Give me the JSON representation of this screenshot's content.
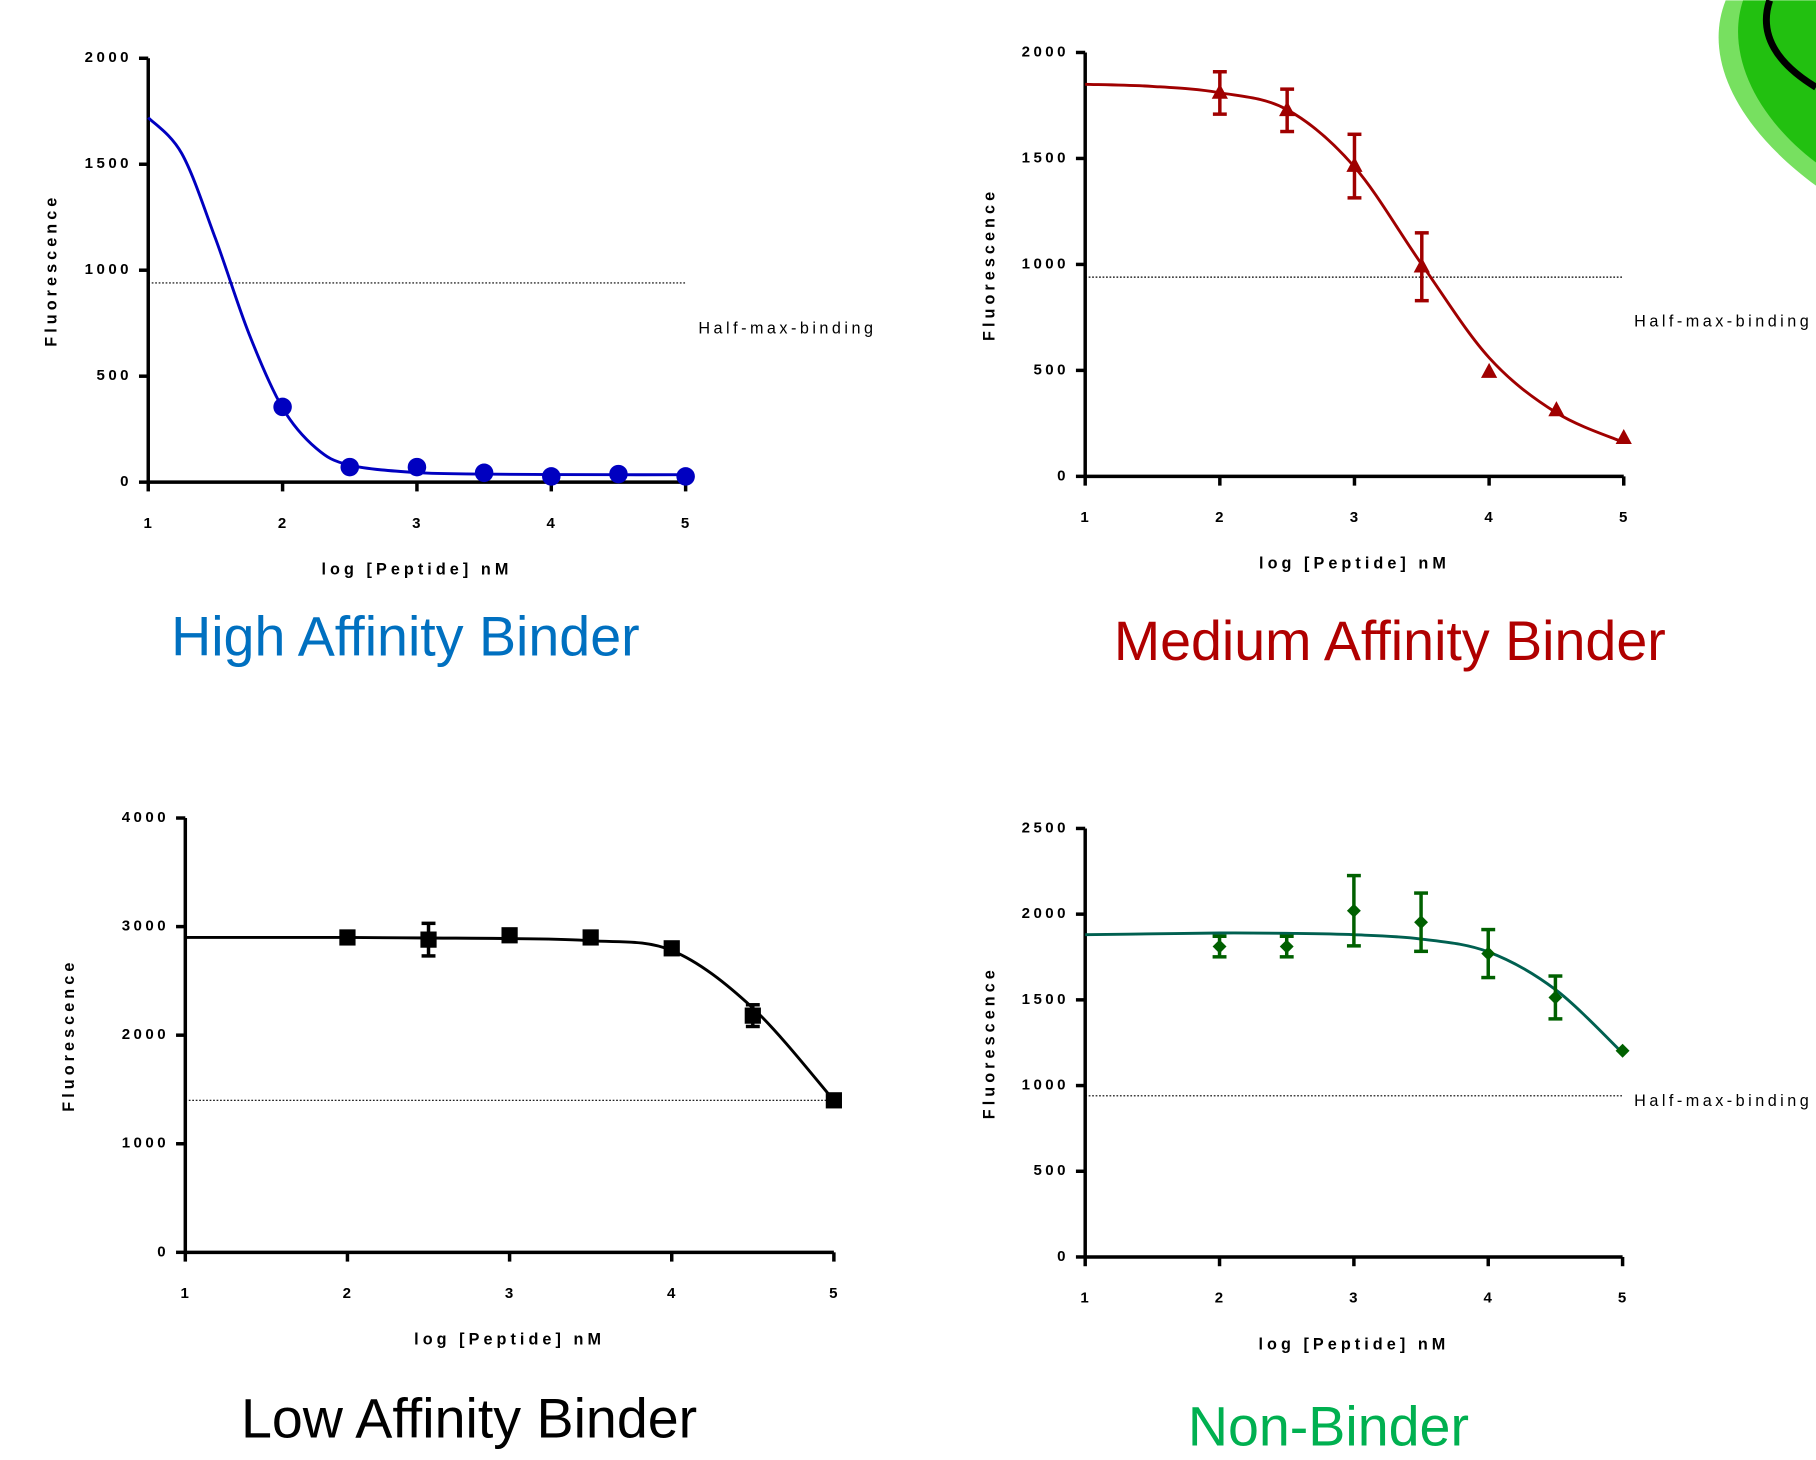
{
  "chart_data": [
    {
      "type": "scatter",
      "title": "High Affinity Binder",
      "title_color": "#0070c0",
      "xlabel": "log [Peptide] nM",
      "ylabel": "Fluorescence",
      "xlim": [
        1,
        5
      ],
      "xticks": [
        1,
        2,
        3,
        4,
        5
      ],
      "ylim": [
        0,
        2000
      ],
      "yticks": [
        0,
        500,
        1000,
        1500,
        2000
      ],
      "series": [
        {
          "color": "#0000c0",
          "marker": "circle",
          "x": [
            2,
            2.5,
            3,
            3.5,
            4,
            4.5,
            5
          ],
          "values": [
            355,
            71,
            71,
            44,
            27,
            38,
            27
          ],
          "errors": [
            null,
            null,
            null,
            null,
            null,
            null,
            null
          ]
        }
      ],
      "fit": {
        "color": "#0000c0",
        "x": [
          1,
          1.25,
          1.5,
          1.75,
          2,
          2.25,
          2.5,
          3,
          3.5,
          4,
          4.5,
          5
        ],
        "values": [
          1720,
          1550,
          1150,
          700,
          350,
          160,
          80,
          45,
          38,
          36,
          35,
          35
        ]
      },
      "hline": {
        "value": 940,
        "label": "Half-max-binding"
      }
    },
    {
      "type": "scatter",
      "title": "Medium Affinity Binder",
      "title_color": "#b00000",
      "xlabel": "log [Peptide] nM",
      "ylabel": "Fluorescence",
      "xlim": [
        1,
        5
      ],
      "xticks": [
        1,
        2,
        3,
        4,
        5
      ],
      "ylim": [
        0,
        2000
      ],
      "yticks": [
        0,
        500,
        1000,
        1500,
        2000
      ],
      "series": [
        {
          "color": "#a00000",
          "marker": "triangle",
          "x": [
            2,
            2.5,
            3,
            3.5,
            4,
            4.5,
            5
          ],
          "values": [
            1809,
            1727,
            1464,
            989,
            492,
            311,
            180
          ],
          "errors": [
            100,
            100,
            150,
            160,
            null,
            null,
            null
          ]
        }
      ],
      "fit": {
        "color": "#a00000",
        "x": [
          1,
          1.5,
          2,
          2.5,
          3,
          3.5,
          4,
          4.5,
          5
        ],
        "values": [
          1850,
          1840,
          1810,
          1730,
          1460,
          1000,
          560,
          300,
          160
        ]
      },
      "hline": {
        "value": 940,
        "label": "Half-max-binding"
      }
    },
    {
      "type": "scatter",
      "title": "Low Affinity Binder",
      "title_color": "#000000",
      "xlabel": "log [Peptide] nM",
      "ylabel": "Fluorescence",
      "xlim": [
        1,
        5
      ],
      "xticks": [
        1,
        2,
        3,
        4,
        5
      ],
      "ylim": [
        0,
        4000
      ],
      "yticks": [
        0,
        1000,
        2000,
        3000,
        4000
      ],
      "series": [
        {
          "color": "#000000",
          "marker": "square",
          "x": [
            2,
            2.5,
            3,
            3.5,
            4,
            4.5,
            5
          ],
          "values": [
            2900,
            2880,
            2920,
            2900,
            2800,
            2180,
            1400
          ],
          "errors": [
            null,
            150,
            null,
            null,
            null,
            100,
            null
          ]
        }
      ],
      "fit": {
        "color": "#000000",
        "x": [
          1,
          1.5,
          2,
          2.5,
          3,
          3.5,
          4,
          4.5,
          5
        ],
        "values": [
          2900,
          2900,
          2900,
          2895,
          2890,
          2870,
          2780,
          2250,
          1400
        ]
      },
      "hline": {
        "value": 1400
      }
    },
    {
      "type": "scatter",
      "title": "Non-Binder",
      "title_color": "#00b050",
      "xlabel": "log [Peptide] nM",
      "ylabel": "Fluorescence",
      "xlim": [
        1,
        5
      ],
      "xticks": [
        1,
        2,
        3,
        4,
        5
      ],
      "ylim": [
        0,
        2500
      ],
      "yticks": [
        0,
        500,
        1000,
        1500,
        2000,
        2500
      ],
      "series": [
        {
          "color": "#006000",
          "marker": "diamond",
          "x": [
            2,
            2.5,
            3,
            3.5,
            4,
            4.5,
            5
          ],
          "values": [
            1811,
            1811,
            2020,
            1953,
            1770,
            1514,
            1203
          ],
          "errors": [
            60,
            60,
            205,
            170,
            140,
            125,
            null
          ]
        }
      ],
      "fit": {
        "color": "#006050",
        "x": [
          1,
          1.5,
          2,
          2.5,
          3,
          3.5,
          4,
          4.5,
          5
        ],
        "values": [
          1880,
          1885,
          1890,
          1888,
          1880,
          1855,
          1780,
          1560,
          1190
        ]
      },
      "hline": {
        "value": 940,
        "label": "Half-max-binding"
      }
    }
  ]
}
